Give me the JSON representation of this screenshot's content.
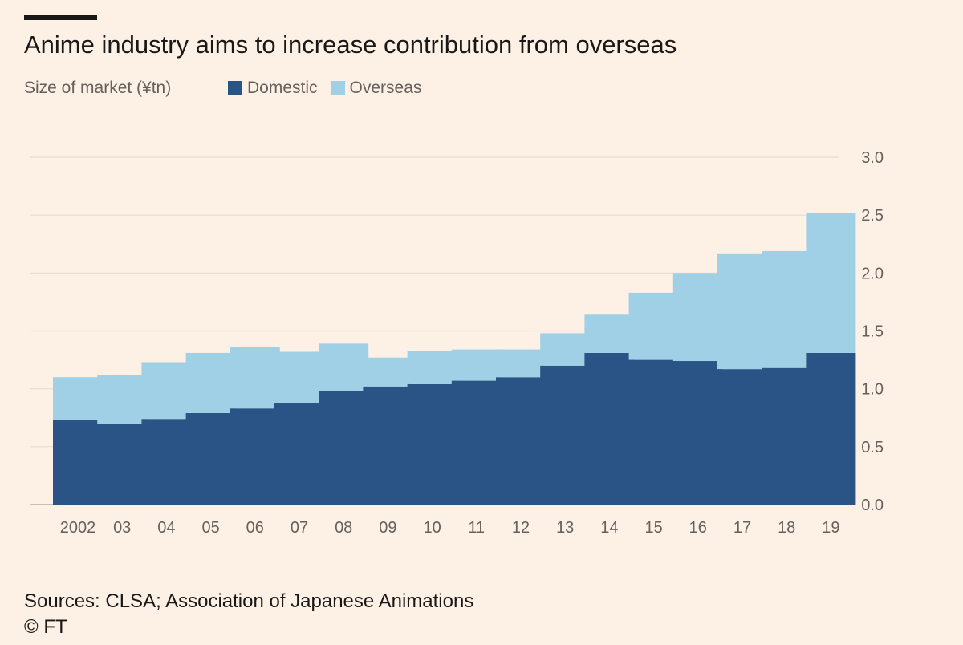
{
  "header": {
    "title": "Anime industry aims to increase contribution from overseas",
    "subtitle": "Size of market (¥tn)"
  },
  "legend": {
    "domestic_label": "Domestic",
    "overseas_label": "Overseas"
  },
  "colors": {
    "domestic": "#2a5386",
    "overseas": "#9fd0e6",
    "background": "#fdf1e6",
    "gridline": "#e8dcd1",
    "text": "#66605c"
  },
  "footer": {
    "sources": "Sources: CLSA; Association of Japanese Animations",
    "copyright": "© FT"
  },
  "chart_data": {
    "type": "bar",
    "stacked": true,
    "title": "Anime industry aims to increase contribution from overseas",
    "ylabel": "Size of market (¥tn)",
    "xlabel": "",
    "categories": [
      "2002",
      "03",
      "04",
      "05",
      "06",
      "07",
      "08",
      "09",
      "10",
      "11",
      "12",
      "13",
      "14",
      "15",
      "16",
      "17",
      "18",
      "19"
    ],
    "series": [
      {
        "name": "Domestic",
        "values": [
          0.73,
          0.7,
          0.74,
          0.79,
          0.83,
          0.88,
          0.98,
          1.02,
          1.04,
          1.07,
          1.1,
          1.2,
          1.31,
          1.25,
          1.24,
          1.17,
          1.18,
          1.31
        ]
      },
      {
        "name": "Overseas",
        "values": [
          0.37,
          0.42,
          0.49,
          0.52,
          0.53,
          0.44,
          0.41,
          0.25,
          0.29,
          0.27,
          0.24,
          0.28,
          0.33,
          0.58,
          0.76,
          1.0,
          1.01,
          1.21
        ]
      }
    ],
    "ylim": [
      0,
      3.0
    ],
    "yticks": [
      "0.0",
      "0.5",
      "1.0",
      "1.5",
      "2.0",
      "2.5",
      "3.0"
    ],
    "ytick_values": [
      0,
      0.5,
      1.0,
      1.5,
      2.0,
      2.5,
      3.0
    ],
    "y_axis_side": "right",
    "grid": true,
    "legend_position": "top-left"
  }
}
